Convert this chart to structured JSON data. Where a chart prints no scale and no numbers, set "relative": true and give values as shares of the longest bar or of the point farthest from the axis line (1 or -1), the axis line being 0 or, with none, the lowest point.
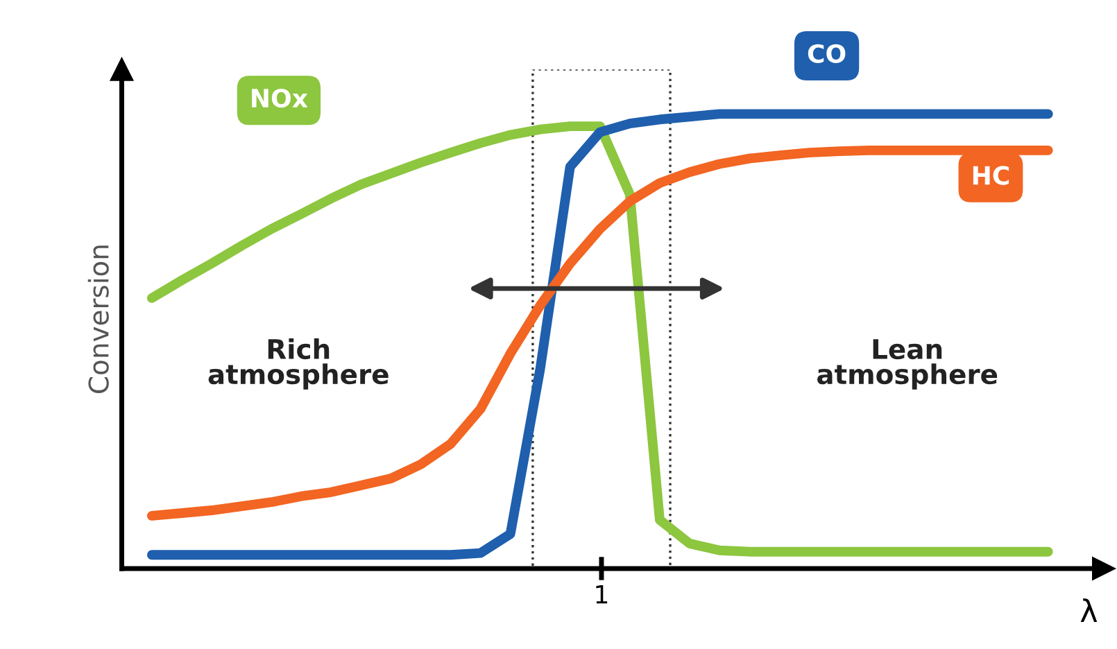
{
  "chart_data": {
    "type": "line",
    "relative": true,
    "xlabel": "λ",
    "ylabel": "Conversion",
    "categories": [
      null,
      null,
      null,
      null,
      null,
      null,
      null,
      null,
      null,
      null,
      null,
      null,
      null,
      null,
      null,
      null,
      null,
      null,
      null,
      null,
      null,
      null,
      null,
      null,
      null,
      null,
      null,
      null,
      null,
      null,
      null
    ],
    "series": [
      {
        "name": "NOx",
        "color": "#8dc63f",
        "values": [
          0.595,
          0.634,
          0.671,
          0.71,
          0.747,
          0.78,
          0.814,
          0.845,
          0.869,
          0.893,
          0.915,
          0.936,
          0.954,
          0.966,
          0.973,
          0.973,
          0.823,
          0.107,
          0.055,
          0.04,
          0.037,
          0.037,
          0.037,
          0.037,
          0.037,
          0.037,
          0.037,
          0.037,
          0.037,
          0.037,
          0.037
        ]
      },
      {
        "name": "CO",
        "color": "#1f5fad",
        "values": [
          0.03,
          0.03,
          0.03,
          0.03,
          0.03,
          0.03,
          0.03,
          0.03,
          0.03,
          0.03,
          0.03,
          0.034,
          0.076,
          0.44,
          0.884,
          0.96,
          0.979,
          0.988,
          0.994,
          1.0,
          1.0,
          1.0,
          1.0,
          1.0,
          1.0,
          1.0,
          1.0,
          1.0,
          1.0,
          1.0,
          1.0
        ]
      },
      {
        "name": "HC",
        "color": "#f26522",
        "values": [
          0.116,
          0.122,
          0.128,
          0.137,
          0.146,
          0.159,
          0.168,
          0.183,
          0.198,
          0.229,
          0.274,
          0.351,
          0.473,
          0.579,
          0.671,
          0.747,
          0.808,
          0.848,
          0.872,
          0.89,
          0.902,
          0.909,
          0.915,
          0.918,
          0.92,
          0.92,
          0.92,
          0.92,
          0.92,
          0.92,
          0.92
        ]
      }
    ],
    "annotations": [
      "Rich\natmosphere",
      "Lean\natmosphere",
      "1"
    ],
    "legend": false,
    "marker": "none",
    "line_style": "solid"
  }
}
